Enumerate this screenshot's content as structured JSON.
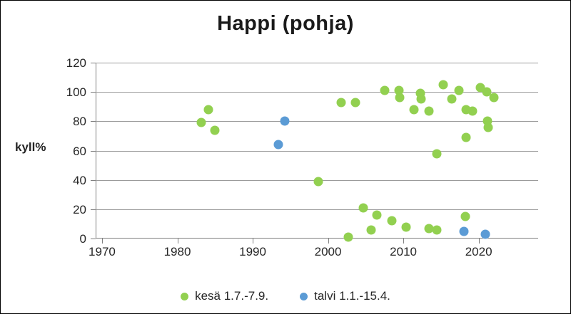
{
  "window": {
    "title": "Happi (pohja)"
  },
  "chart_data": {
    "type": "scatter",
    "title": "Happi (pohja)",
    "xlabel": "",
    "ylabel": "kyll%",
    "xlim": [
      1969.15,
      2027.9
    ],
    "ylim": [
      0,
      120
    ],
    "x_ticks": [
      1970,
      1980,
      1990,
      2000,
      2010,
      2020
    ],
    "y_ticks": [
      0,
      20,
      40,
      60,
      80,
      100,
      120
    ],
    "grid": "horizontal",
    "legend_position": "bottom",
    "axis_color": "#7f7f7f",
    "gridline_color": "#9b9b9b",
    "text_color": "#262626",
    "series": [
      {
        "name": "kesä 1.7.-7.9.",
        "color": "#92D050",
        "points": [
          [
            1983.2,
            79
          ],
          [
            1984.1,
            88
          ],
          [
            1985.0,
            74
          ],
          [
            1998.7,
            39
          ],
          [
            2001.7,
            93
          ],
          [
            2002.7,
            1
          ],
          [
            2003.6,
            93
          ],
          [
            2004.7,
            21
          ],
          [
            2005.7,
            6
          ],
          [
            2006.5,
            16
          ],
          [
            2007.5,
            101
          ],
          [
            2008.5,
            12
          ],
          [
            2009.4,
            101
          ],
          [
            2009.5,
            96
          ],
          [
            2010.4,
            8
          ],
          [
            2011.4,
            88
          ],
          [
            2012.3,
            99
          ],
          [
            2012.4,
            95
          ],
          [
            2013.4,
            87
          ],
          [
            2013.4,
            7
          ],
          [
            2014.4,
            6
          ],
          [
            2014.4,
            58
          ],
          [
            2015.3,
            105
          ],
          [
            2016.4,
            95
          ],
          [
            2017.4,
            101
          ],
          [
            2018.2,
            15
          ],
          [
            2018.3,
            88
          ],
          [
            2018.3,
            69
          ],
          [
            2019.2,
            87
          ],
          [
            2020.2,
            103
          ],
          [
            2021.1,
            100
          ],
          [
            2021.2,
            80
          ],
          [
            2021.3,
            76
          ],
          [
            2022.0,
            96
          ]
        ]
      },
      {
        "name": "talvi 1.1.-15.4.",
        "color": "#5B9BD5",
        "points": [
          [
            1993.4,
            64
          ],
          [
            1994.3,
            80
          ],
          [
            2018.0,
            5
          ],
          [
            2020.9,
            3
          ]
        ]
      }
    ]
  }
}
